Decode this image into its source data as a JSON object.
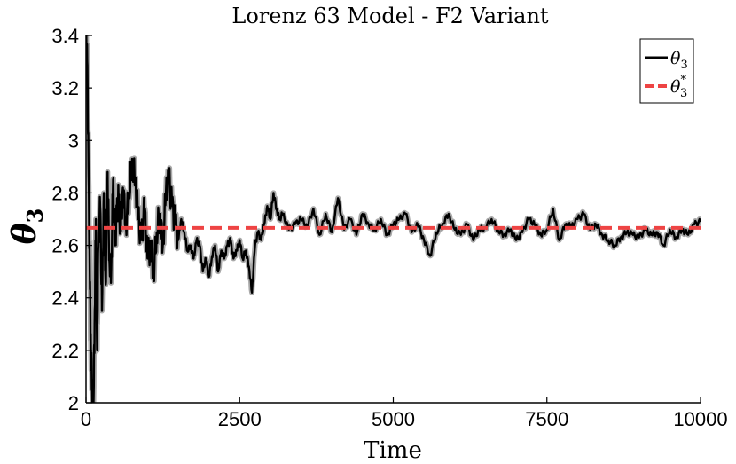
{
  "chart_data": {
    "type": "line",
    "title": "Lorenz 63 Model - F2 Variant",
    "xlabel": "Time",
    "ylabel": "θ",
    "ylabel_subscript": "3",
    "xlim": [
      0,
      10000
    ],
    "ylim": [
      2,
      3.4
    ],
    "x_ticks": [
      0,
      2500,
      5000,
      7500,
      10000
    ],
    "x_tick_labels": [
      "0",
      "2500",
      "5000",
      "7500",
      "10000"
    ],
    "y_ticks": [
      2,
      2.2,
      2.4,
      2.6,
      2.8,
      3,
      3.2,
      3.4
    ],
    "y_tick_labels": [
      "2",
      "2.2",
      "2.4",
      "2.6",
      "2.8",
      "3",
      "3.2",
      "3.4"
    ],
    "grid": false,
    "legend_position": "top-right",
    "series": [
      {
        "name": "θ",
        "name_sub": "3",
        "style": "solid",
        "color": "#000000",
        "band_color": "#9a9a9a",
        "x": [
          0,
          20,
          40,
          60,
          80,
          100,
          120,
          140,
          160,
          180,
          200,
          230,
          260,
          290,
          320,
          350,
          380,
          410,
          440,
          470,
          500,
          530,
          560,
          600,
          650,
          700,
          750,
          800,
          850,
          900,
          950,
          1000,
          1050,
          1100,
          1150,
          1200,
          1250,
          1300,
          1350,
          1400,
          1450,
          1500,
          1550,
          1600,
          1650,
          1700,
          1750,
          1800,
          1850,
          1900,
          1950,
          2000,
          2050,
          2100,
          2150,
          2200,
          2250,
          2300,
          2350,
          2400,
          2450,
          2500,
          2550,
          2600,
          2650,
          2700,
          2750,
          2800,
          2850,
          2900,
          2950,
          3000,
          3050,
          3100,
          3150,
          3200,
          3300,
          3400,
          3500,
          3600,
          3700,
          3800,
          3900,
          4000,
          4100,
          4200,
          4300,
          4400,
          4500,
          4600,
          4700,
          4800,
          4900,
          5000,
          5100,
          5200,
          5300,
          5400,
          5500,
          5600,
          5700,
          5800,
          5900,
          6000,
          6100,
          6200,
          6300,
          6400,
          6500,
          6600,
          6700,
          6800,
          6900,
          7000,
          7100,
          7200,
          7300,
          7400,
          7500,
          7600,
          7700,
          7800,
          7900,
          8000,
          8100,
          8200,
          8300,
          8400,
          8500,
          8600,
          8700,
          8800,
          8900,
          9000,
          9100,
          9200,
          9300,
          9400,
          9500,
          9600,
          9700,
          9800,
          9900,
          10000
        ],
        "values": [
          3.4,
          3.3,
          2.9,
          2.5,
          2.2,
          2.05,
          2.0,
          2.3,
          2.7,
          2.2,
          2.6,
          2.75,
          2.35,
          2.8,
          2.45,
          2.88,
          2.55,
          2.5,
          2.85,
          2.6,
          2.72,
          2.78,
          2.65,
          2.82,
          2.68,
          2.8,
          2.93,
          2.85,
          2.7,
          2.62,
          2.74,
          2.55,
          2.6,
          2.5,
          2.65,
          2.72,
          2.6,
          2.8,
          2.85,
          2.75,
          2.68,
          2.62,
          2.7,
          2.65,
          2.58,
          2.6,
          2.55,
          2.62,
          2.6,
          2.5,
          2.55,
          2.48,
          2.56,
          2.6,
          2.5,
          2.58,
          2.55,
          2.6,
          2.62,
          2.55,
          2.58,
          2.62,
          2.55,
          2.58,
          2.52,
          2.42,
          2.6,
          2.65,
          2.62,
          2.68,
          2.75,
          2.7,
          2.8,
          2.74,
          2.7,
          2.72,
          2.66,
          2.68,
          2.7,
          2.67,
          2.74,
          2.64,
          2.72,
          2.65,
          2.78,
          2.66,
          2.7,
          2.64,
          2.72,
          2.68,
          2.66,
          2.7,
          2.64,
          2.68,
          2.7,
          2.72,
          2.65,
          2.68,
          2.62,
          2.56,
          2.65,
          2.68,
          2.72,
          2.66,
          2.64,
          2.68,
          2.62,
          2.66,
          2.67,
          2.7,
          2.66,
          2.64,
          2.66,
          2.62,
          2.65,
          2.7,
          2.68,
          2.64,
          2.66,
          2.74,
          2.62,
          2.68,
          2.67,
          2.7,
          2.72,
          2.66,
          2.68,
          2.64,
          2.62,
          2.6,
          2.63,
          2.65,
          2.64,
          2.63,
          2.66,
          2.64,
          2.65,
          2.6,
          2.66,
          2.63,
          2.66,
          2.64,
          2.68,
          2.69
        ]
      },
      {
        "name": "θ",
        "name_sub": "3",
        "name_sup": "*",
        "style": "dashed",
        "color": "#ee4444",
        "x": [
          0,
          10000
        ],
        "values": [
          2.6667,
          2.6667
        ]
      }
    ]
  }
}
